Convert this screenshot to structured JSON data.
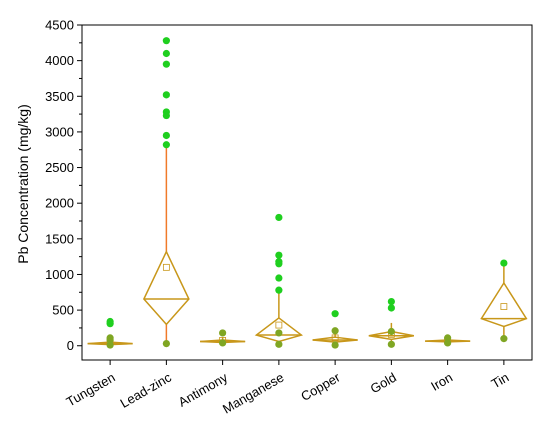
{
  "chart_data": {
    "type": "box",
    "title": "",
    "xlabel": "",
    "ylabel": "Pb Concentration (mg/kg)",
    "ylim": [
      -200,
      4500
    ],
    "yticks": [
      0,
      500,
      1000,
      1500,
      2000,
      2500,
      3000,
      3500,
      4000,
      4500
    ],
    "categories": [
      "Tungsten",
      "Lead-zinc",
      "Antimony",
      "Manganese",
      "Copper",
      "Gold",
      "Iron",
      "Tin"
    ],
    "series": [
      {
        "category": "Tungsten",
        "whisker_low": 0,
        "q1": 15,
        "median": 30,
        "q3": 50,
        "whisker_high": 80,
        "mean": 60,
        "outliers": [
          310,
          340,
          110,
          80,
          10
        ]
      },
      {
        "category": "Lead-zinc",
        "whisker_low": 30,
        "q1": 300,
        "median": 655,
        "q3": 1320,
        "whisker_high": 2800,
        "mean": 1100,
        "outliers": [
          4280,
          4100,
          3950,
          3520,
          3280,
          3230,
          2950,
          2820,
          30
        ]
      },
      {
        "category": "Antimony",
        "whisker_low": 30,
        "q1": 45,
        "median": 60,
        "q3": 80,
        "whisker_high": 120,
        "mean": 75,
        "outliers": [
          180,
          40
        ]
      },
      {
        "category": "Manganese",
        "whisker_low": 10,
        "q1": 60,
        "median": 150,
        "q3": 390,
        "whisker_high": 800,
        "mean": 290,
        "outliers": [
          1800,
          1270,
          1180,
          1150,
          950,
          780,
          180,
          20
        ]
      },
      {
        "category": "Copper",
        "whisker_low": 20,
        "q1": 50,
        "median": 80,
        "q3": 120,
        "whisker_high": 220,
        "mean": 110,
        "outliers": [
          450,
          210,
          10
        ]
      },
      {
        "category": "Gold",
        "whisker_low": 30,
        "q1": 90,
        "median": 140,
        "q3": 200,
        "whisker_high": 320,
        "mean": 160,
        "outliers": [
          620,
          530,
          200,
          20
        ]
      },
      {
        "category": "Iron",
        "whisker_low": 40,
        "q1": 55,
        "median": 65,
        "q3": 80,
        "whisker_high": 110,
        "mean": 70,
        "outliers": [
          110,
          40
        ]
      },
      {
        "category": "Tin",
        "whisker_low": 100,
        "q1": 270,
        "median": 380,
        "q3": 880,
        "whisker_high": 1160,
        "mean": 550,
        "outliers": [
          1160,
          100
        ]
      }
    ],
    "colors": {
      "box": "#c8971a",
      "lead_whisker": "#f07a2a",
      "outlier": "#1fcf1f",
      "outlier_low": "#7fa623",
      "mean_marker": "#c8971a",
      "axis": "#000000"
    },
    "grid": false,
    "legend": "none"
  }
}
